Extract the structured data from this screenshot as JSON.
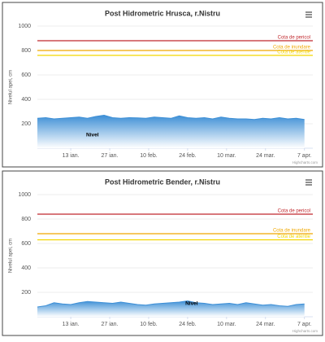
{
  "chart_data": [
    {
      "type": "area",
      "title": "Post Hidrometric Hrusca, r.Nistru",
      "y_label": "Nivelul apei, cm",
      "x": [
        0,
        3,
        6,
        9,
        12,
        15,
        18,
        21,
        24,
        27,
        30,
        33,
        36,
        39,
        42,
        45,
        48,
        51,
        54,
        57,
        60,
        63,
        66,
        69,
        72,
        75,
        78,
        81,
        84,
        87,
        90,
        93,
        96
      ],
      "xlim": [
        0,
        99
      ],
      "xticks": [
        {
          "value": 12,
          "label": "13 ian."
        },
        {
          "value": 26,
          "label": "27 ian."
        },
        {
          "value": 40,
          "label": "10 feb."
        },
        {
          "value": 54,
          "label": "24 feb."
        },
        {
          "value": 68,
          "label": "10 mar."
        },
        {
          "value": 82,
          "label": "24 mar."
        },
        {
          "value": 96,
          "label": "7 apr."
        }
      ],
      "ylim": [
        0,
        1000
      ],
      "yticks": [
        200,
        400,
        600,
        800,
        1000
      ],
      "grid": true,
      "series": [
        {
          "name": "Nivel",
          "color": "#3d8fd6",
          "values": [
            245,
            250,
            240,
            245,
            250,
            255,
            245,
            260,
            270,
            250,
            245,
            250,
            248,
            245,
            255,
            250,
            245,
            265,
            250,
            245,
            250,
            240,
            255,
            245,
            240,
            240,
            235,
            245,
            240,
            250,
            240,
            245,
            235
          ]
        }
      ],
      "plot_lines": [
        {
          "label": "Cota de pericol",
          "value": 880,
          "color": "#c0282d"
        },
        {
          "label": "Cota de inundare",
          "value": 800,
          "color": "#f0a800"
        },
        {
          "label": "Cota de atentie",
          "value": 760,
          "color": "#f2d600"
        }
      ],
      "credits": "Highcharts.com"
    },
    {
      "type": "area",
      "title": "Post Hidrometric Bender, r.Nistru",
      "y_label": "Nivelul apei, cm",
      "x": [
        0,
        3,
        6,
        9,
        12,
        15,
        18,
        21,
        24,
        27,
        30,
        33,
        36,
        39,
        42,
        45,
        48,
        51,
        54,
        57,
        60,
        63,
        66,
        69,
        72,
        75,
        78,
        81,
        84,
        87,
        90,
        93,
        96
      ],
      "xlim": [
        0,
        99
      ],
      "xticks": [
        {
          "value": 12,
          "label": "13 ian."
        },
        {
          "value": 26,
          "label": "27 ian."
        },
        {
          "value": 40,
          "label": "10 feb."
        },
        {
          "value": 54,
          "label": "24 feb."
        },
        {
          "value": 68,
          "label": "10 mar."
        },
        {
          "value": 82,
          "label": "24 mar."
        },
        {
          "value": 96,
          "label": "7 apr."
        }
      ],
      "ylim": [
        0,
        1000
      ],
      "yticks": [
        200,
        400,
        600,
        800,
        1000
      ],
      "grid": true,
      "series": [
        {
          "name": "Nivel",
          "color": "#3d8fd6",
          "values": [
            80,
            90,
            115,
            105,
            100,
            115,
            125,
            120,
            115,
            110,
            120,
            110,
            100,
            95,
            105,
            110,
            115,
            120,
            130,
            115,
            110,
            100,
            105,
            110,
            100,
            115,
            105,
            95,
            100,
            90,
            85,
            100,
            105
          ]
        }
      ],
      "plot_lines": [
        {
          "label": "Cota de pericol",
          "value": 840,
          "color": "#c0282d"
        },
        {
          "label": "Cota de inundare",
          "value": 680,
          "color": "#f0a800"
        },
        {
          "label": "Cota de atentie",
          "value": 630,
          "color": "#f2d600"
        }
      ],
      "credits": "Highcharts.com"
    }
  ]
}
